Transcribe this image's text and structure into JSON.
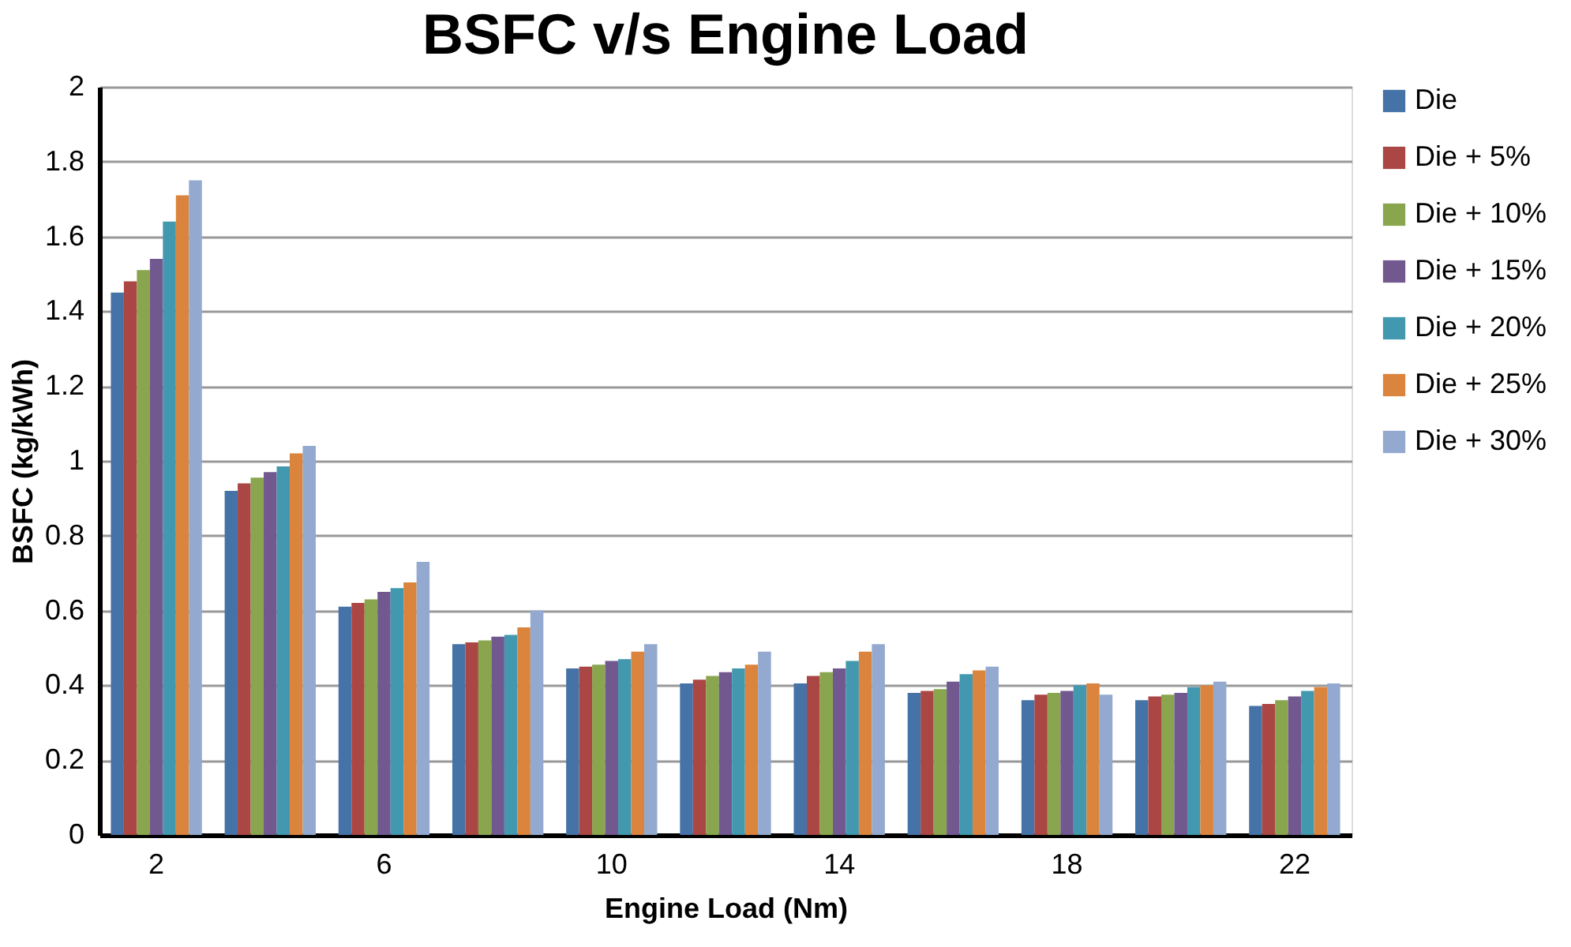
{
  "chart_data": {
    "type": "bar",
    "title": "BSFC v/s Engine Load",
    "xlabel": "Engine Load (Nm)",
    "ylabel": "BSFC (kg/kWh)",
    "categories": [
      "2",
      null,
      "6",
      null,
      "10",
      null,
      "14",
      null,
      "18",
      null,
      "22"
    ],
    "ylim": [
      0,
      2
    ],
    "yticks": [
      0,
      0.2,
      0.4,
      0.6,
      0.8,
      1,
      1.2,
      1.4,
      1.6,
      1.8,
      2
    ],
    "grid": "y",
    "legend": "right",
    "series": [
      {
        "name": "Die",
        "color": "#4572a7",
        "values": [
          1.45,
          0.92,
          0.61,
          0.51,
          0.445,
          0.405,
          0.405,
          0.38,
          0.36,
          0.36,
          0.345
        ]
      },
      {
        "name": "Die + 5%",
        "color": "#aa4643",
        "values": [
          1.48,
          0.94,
          0.62,
          0.515,
          0.45,
          0.415,
          0.425,
          0.385,
          0.375,
          0.37,
          0.35
        ]
      },
      {
        "name": "Die + 10%",
        "color": "#89a54e",
        "values": [
          1.51,
          0.955,
          0.63,
          0.52,
          0.455,
          0.425,
          0.435,
          0.39,
          0.38,
          0.375,
          0.36
        ]
      },
      {
        "name": "Die + 15%",
        "color": "#71588f",
        "values": [
          1.54,
          0.97,
          0.65,
          0.53,
          0.465,
          0.435,
          0.445,
          0.41,
          0.385,
          0.38,
          0.37
        ]
      },
      {
        "name": "Die + 20%",
        "color": "#4198af",
        "values": [
          1.64,
          0.985,
          0.66,
          0.535,
          0.47,
          0.445,
          0.465,
          0.43,
          0.4,
          0.395,
          0.385
        ]
      },
      {
        "name": "Die + 25%",
        "color": "#db843d",
        "values": [
          1.71,
          1.02,
          0.675,
          0.555,
          0.49,
          0.455,
          0.49,
          0.44,
          0.405,
          0.4,
          0.395
        ]
      },
      {
        "name": "Die + 30%",
        "color": "#93a9cf",
        "values": [
          1.75,
          1.04,
          0.73,
          0.6,
          0.51,
          0.49,
          0.51,
          0.45,
          0.375,
          0.41,
          0.405
        ]
      }
    ]
  }
}
